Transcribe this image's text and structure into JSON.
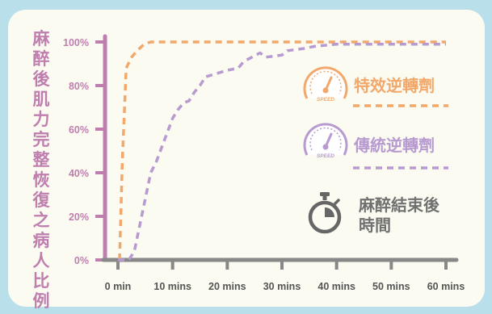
{
  "chart_data": {
    "type": "line",
    "title": "",
    "ylabel": "麻醉後肌力完整恢復之病人比例",
    "xlabel": "",
    "x_ticks": [
      "0 min",
      "10 mins",
      "20 mins",
      "30 mins",
      "40 mins",
      "50 mins",
      "60 mins"
    ],
    "y_ticks": [
      "0%",
      "20%",
      "40%",
      "60%",
      "80%",
      "100%"
    ],
    "xlim": [
      0,
      60
    ],
    "ylim": [
      0,
      100
    ],
    "series": [
      {
        "name": "特效逆轉劑",
        "color": "#f2a86a",
        "style": "dashed",
        "icon": "speedometer-icon",
        "x": [
          0.3,
          0.8,
          1.5,
          2.5,
          3.5,
          4.8,
          6,
          8,
          60
        ],
        "y": [
          0,
          45,
          88,
          93,
          96,
          99,
          100,
          100,
          100
        ]
      },
      {
        "name": "傳統逆轉劑",
        "color": "#b79ad0",
        "style": "dashed",
        "icon": "speedometer-icon",
        "x": [
          0,
          2,
          3,
          5,
          6,
          7,
          10,
          11,
          12,
          13,
          14,
          15,
          16,
          20,
          22,
          23,
          26,
          27,
          30,
          31,
          34,
          36,
          40,
          60
        ],
        "y": [
          0,
          0,
          4,
          28,
          40,
          45,
          65,
          69,
          72,
          73,
          77,
          80,
          84,
          87,
          88,
          91,
          95,
          93,
          94,
          96,
          97,
          98,
          99,
          99
        ]
      }
    ],
    "annotation": {
      "icon": "stopwatch-icon",
      "lines": [
        "麻醉結束後",
        "時間"
      ]
    },
    "colors": {
      "axis_y": "#bf7fae",
      "axis_x": "#888888",
      "background": "#b9dfea",
      "card": "#fbfbf2"
    },
    "speed_label": "SPEED",
    "grid": false,
    "legend_position": "right"
  }
}
